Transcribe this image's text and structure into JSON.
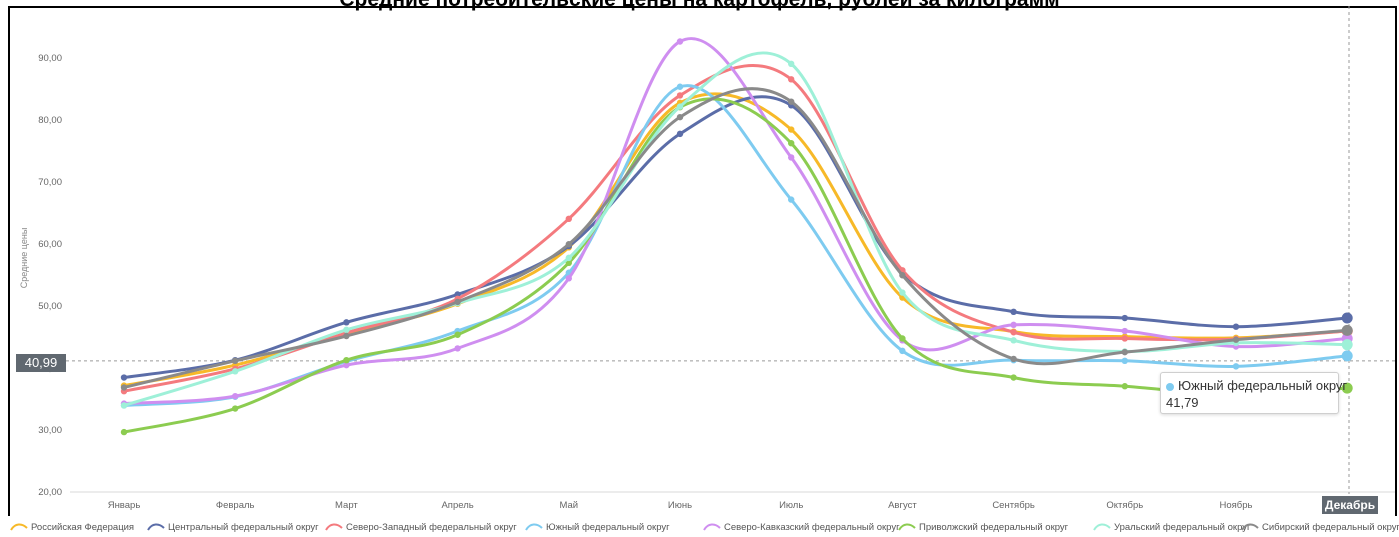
{
  "title": "Средние потребительские цены на картофель, рублей за килограмм",
  "chart_data": {
    "type": "line",
    "ylabel": "Средние цены",
    "xlabel": "",
    "ylim": [
      20,
      95
    ],
    "yticks": [
      "20,00",
      "30,00",
      "40,00",
      "50,00",
      "60,00",
      "70,00",
      "80,00",
      "90,00"
    ],
    "categories": [
      "Январь",
      "Февраль",
      "Март",
      "Апрель",
      "Май",
      "Июнь",
      "Июль",
      "Август",
      "Сентябрь",
      "Октябрь",
      "Ноябрь",
      "Декабрь"
    ],
    "series": [
      {
        "name": "Российская Федерация",
        "color": "#f7b928",
        "values": [
          37.0,
          40.3,
          45.4,
          50.2,
          59.3,
          82.6,
          78.3,
          51.2,
          45.7,
          44.9,
          44.7,
          45.8
        ]
      },
      {
        "name": "Центральный федеральный округ",
        "color": "#5b6da8",
        "values": [
          38.3,
          41.1,
          47.2,
          51.7,
          59.5,
          77.6,
          82.2,
          55.1,
          48.9,
          47.9,
          46.5,
          47.9
        ]
      },
      {
        "name": "Северо-Западный федеральный округ",
        "color": "#f47a7e",
        "values": [
          36.1,
          39.7,
          45.5,
          51.0,
          63.9,
          83.8,
          86.4,
          55.6,
          45.6,
          44.6,
          44.5,
          45.8
        ]
      },
      {
        "name": "Южный федеральный округ",
        "color": "#7ecbf0",
        "values": [
          33.8,
          35.2,
          40.9,
          45.8,
          55.2,
          85.2,
          67.0,
          42.6,
          41.1,
          41.0,
          40.1,
          41.8
        ]
      },
      {
        "name": "Северо-Кавказский федеральный округ",
        "color": "#cf8ef0",
        "values": [
          34.1,
          35.3,
          40.3,
          43.0,
          54.3,
          92.5,
          73.8,
          44.3,
          46.8,
          45.8,
          43.3,
          44.6
        ]
      },
      {
        "name": "Приволжский федеральный округ",
        "color": "#8ccc50",
        "values": [
          29.5,
          33.3,
          41.1,
          45.2,
          56.8,
          81.9,
          76.1,
          44.6,
          38.3,
          36.9,
          35.6,
          36.6
        ]
      },
      {
        "name": "Уральский федеральный округ",
        "color": "#9ef0d8",
        "values": [
          33.8,
          39.3,
          46.0,
          50.3,
          57.6,
          82.0,
          88.9,
          52.0,
          44.3,
          42.5,
          43.9,
          43.6
        ]
      },
      {
        "name": "Сибирский федеральный округ",
        "color": "#8a8a8a",
        "values": [
          36.7,
          41.0,
          45.0,
          50.5,
          59.8,
          80.3,
          82.8,
          54.8,
          41.3,
          42.4,
          44.4,
          45.9
        ]
      }
    ],
    "crosshair_value": "40,99",
    "crosshair_category": "Декабрь",
    "grid": false,
    "legend_position": "bottom"
  },
  "tooltip": {
    "series": "Южный федеральный округ",
    "value": "41,79",
    "color": "#7ecbf0"
  }
}
